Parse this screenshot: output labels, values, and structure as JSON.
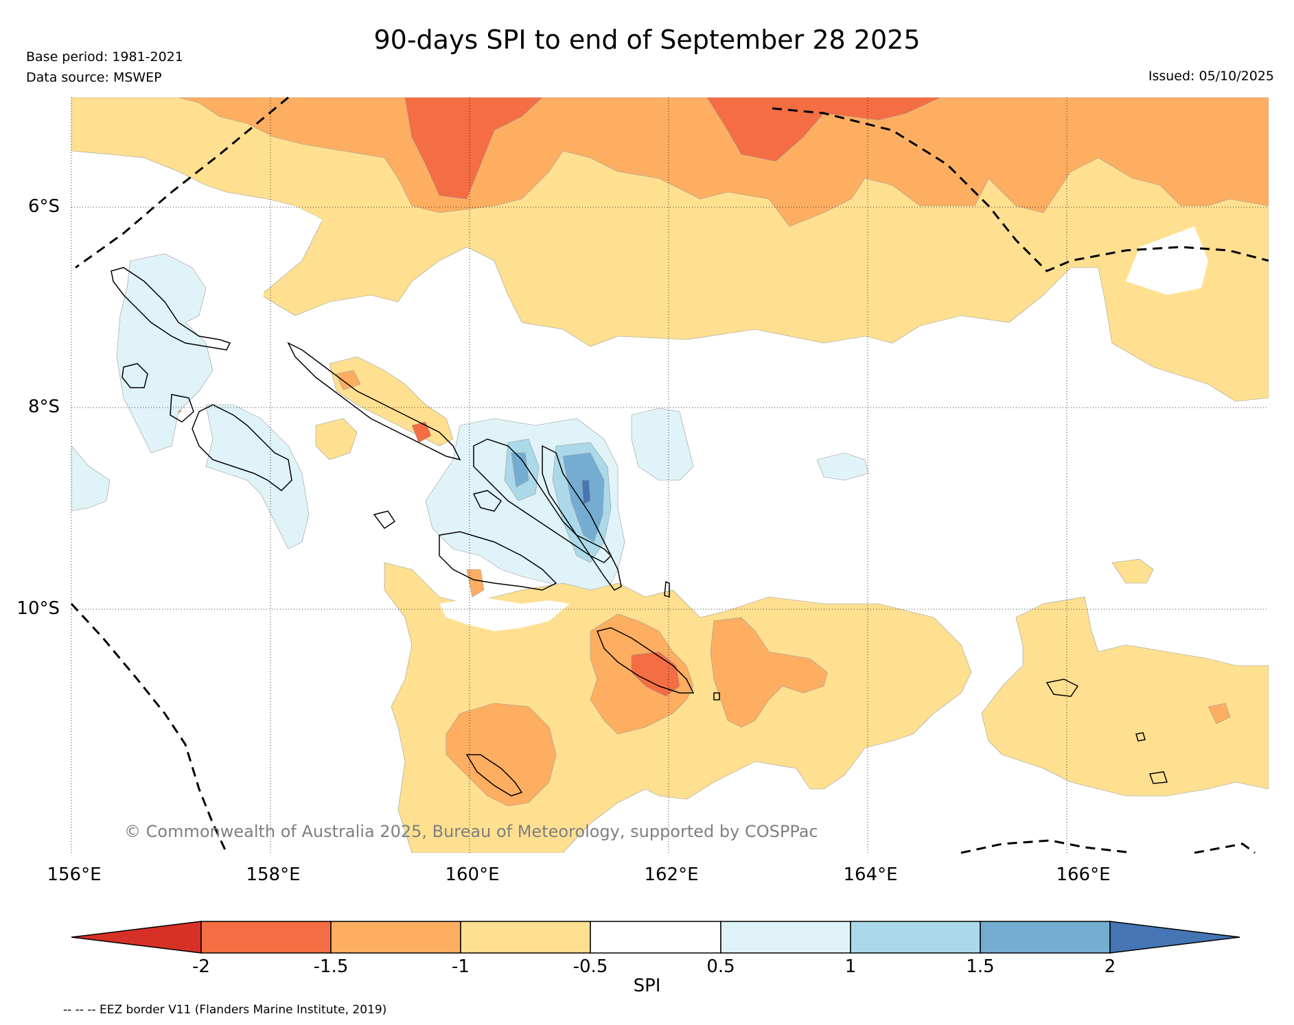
{
  "header": {
    "title": "90-days SPI to end of September 28 2025",
    "base_period": "Base period: 1981-2021",
    "data_source": "Data source: MSWEP",
    "issued": "Issued: 05/10/2025"
  },
  "map": {
    "lon_labels": [
      "156°E",
      "158°E",
      "160°E",
      "162°E",
      "164°E",
      "166°E"
    ],
    "lat_labels": [
      "6°S",
      "8°S",
      "10°S"
    ],
    "copyright": "© Commonwealth of Australia 2025, Bureau of Meteorology, supported by COSPPac",
    "colors": {
      "very_dry": "#d73027",
      "dry_1_5": "#f46d43",
      "dry_1": "#fdae61",
      "dry_0_5": "#fee090",
      "normal": "#ffffff",
      "wet_0_5": "#e0f3f8",
      "wet_1": "#abd9e9",
      "wet_1_5": "#74add1",
      "very_wet": "#4575b4"
    }
  },
  "colorbar": {
    "ticks": [
      "-2",
      "-1.5",
      "-1",
      "-0.5",
      "0.5",
      "1",
      "1.5",
      "2"
    ],
    "label": "SPI",
    "colors": [
      "#d73027",
      "#f46d43",
      "#fdae61",
      "#fee090",
      "#ffffff",
      "#e0f3f8",
      "#abd9e9",
      "#74add1",
      "#4575b4"
    ]
  },
  "footer": {
    "legend_note": "-- -- -- EEZ border V11 (Flanders Marine Institute, 2019)"
  }
}
